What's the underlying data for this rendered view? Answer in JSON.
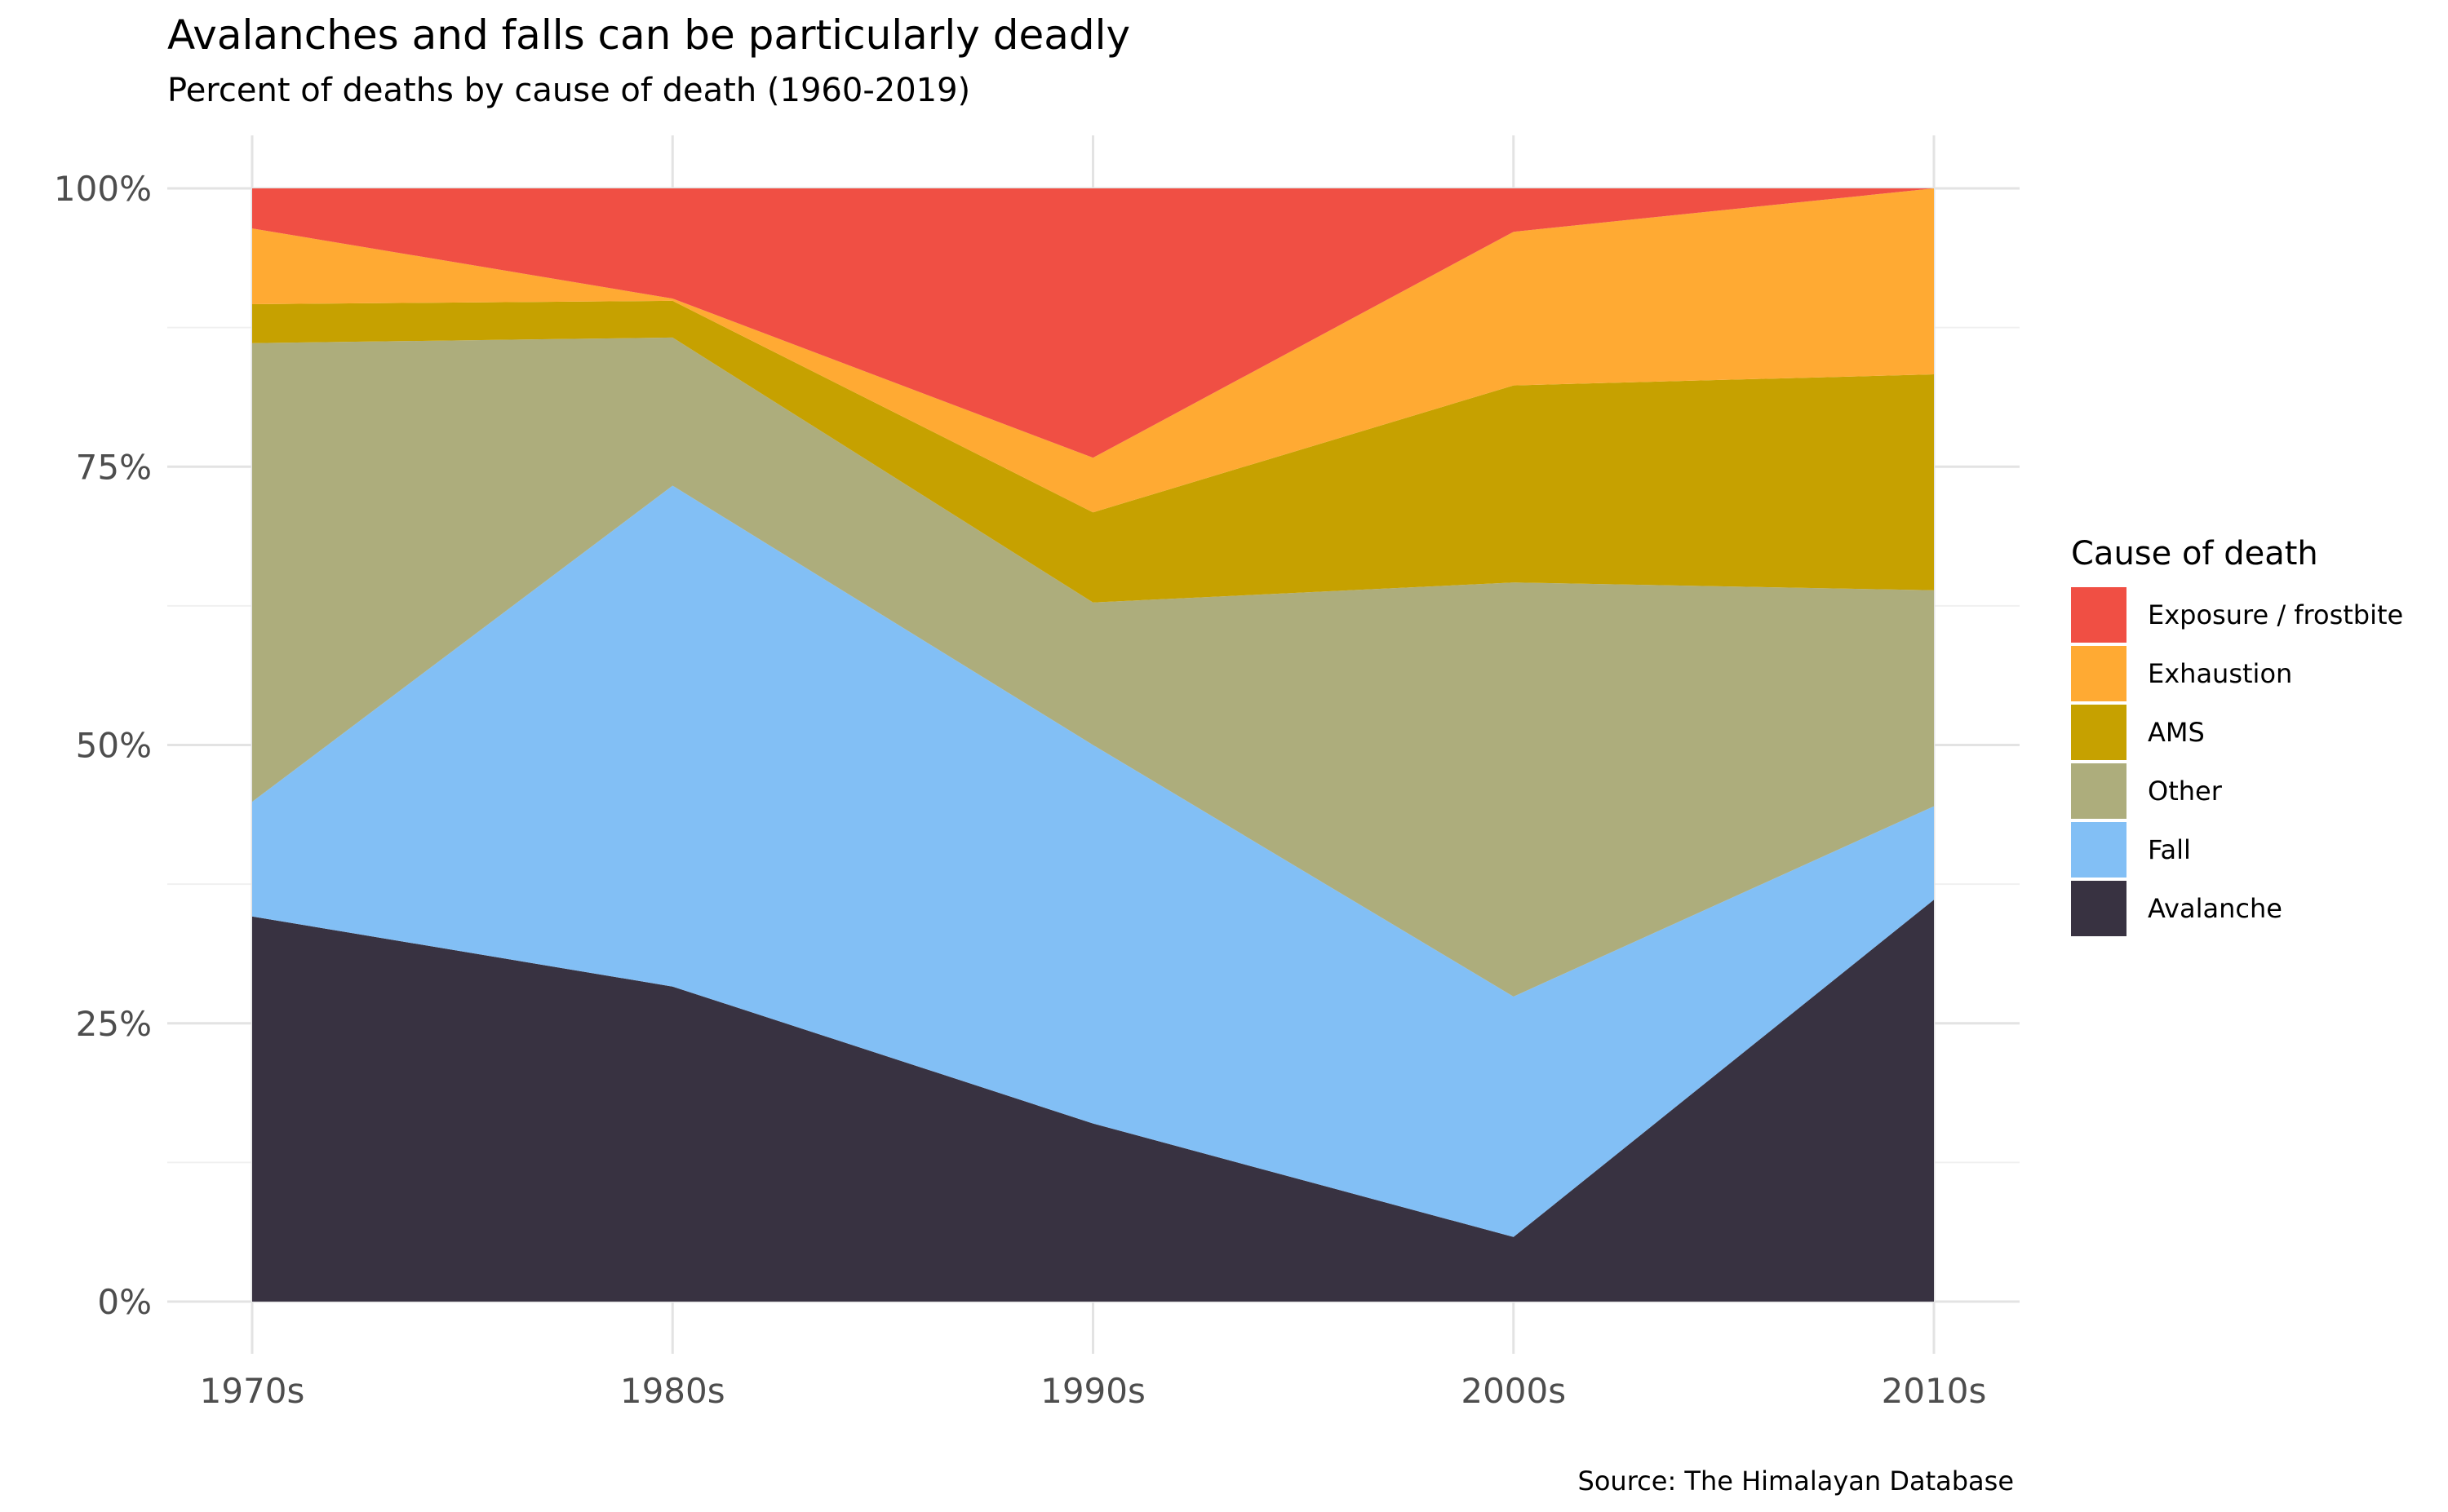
{
  "chart_data": {
    "type": "area",
    "stacked": true,
    "normalized": true,
    "title": "Avalanches and falls can be particularly deadly",
    "subtitle": "Percent of deaths by cause of death (1960-2019)",
    "xlabel": "",
    "ylabel": "",
    "caption": "Source: The Himalayan Database",
    "categories": [
      "1970s",
      "1980s",
      "1990s",
      "2000s",
      "2010s"
    ],
    "ylim": [
      0,
      100
    ],
    "yticks": [
      0,
      25,
      50,
      75,
      100
    ],
    "ytick_labels": [
      "0%",
      "25%",
      "50%",
      "75%",
      "100%"
    ],
    "grid": true,
    "legend_title": "Cause of death",
    "legend_position": "right",
    "series": [
      {
        "name": "Avalanche",
        "color": "#383241",
        "values": [
          34.6,
          28.3,
          16.0,
          5.8,
          36.1
        ]
      },
      {
        "name": "Fall",
        "color": "#82bff5",
        "values": [
          10.3,
          45.0,
          34.0,
          21.6,
          8.4
        ]
      },
      {
        "name": "Other",
        "color": "#adad7c",
        "values": [
          41.2,
          13.3,
          12.8,
          37.2,
          19.4
        ]
      },
      {
        "name": "AMS",
        "color": "#c6a100",
        "values": [
          3.5,
          3.3,
          8.1,
          17.7,
          19.4
        ]
      },
      {
        "name": "Exhaustion",
        "color": "#ffaa33",
        "values": [
          6.8,
          0.2,
          4.9,
          13.8,
          16.7
        ]
      },
      {
        "name": "Exposure / frostbite",
        "color": "#f04f44",
        "values": [
          3.6,
          9.9,
          24.2,
          3.9,
          0.0
        ]
      }
    ]
  }
}
